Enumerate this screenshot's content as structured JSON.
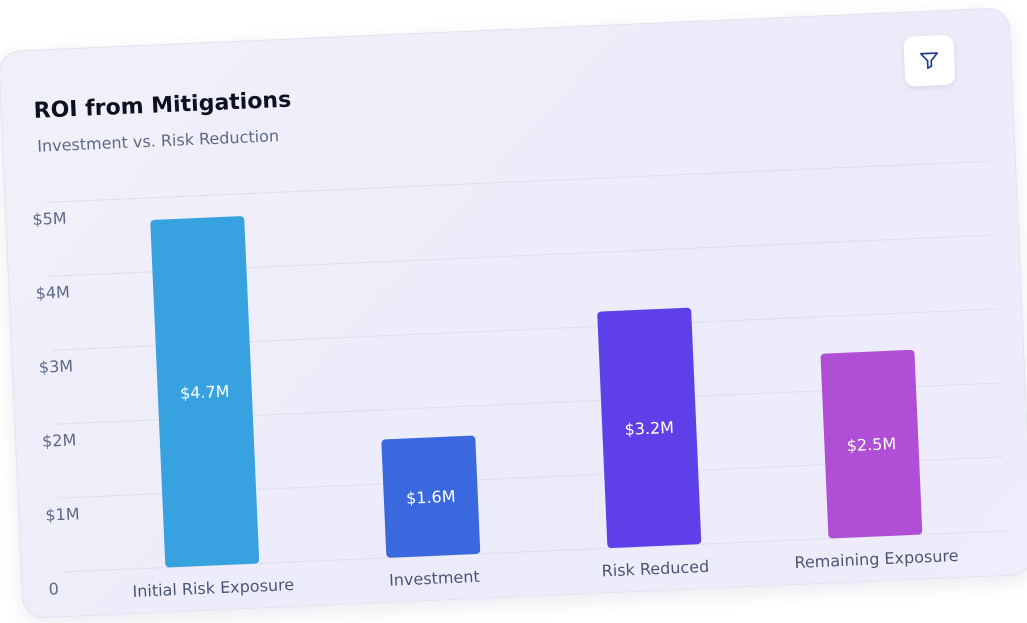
{
  "header": {
    "title": "ROI from Mitigations",
    "subtitle": "Investment vs. Risk Reduction",
    "filter_icon": "filter-icon"
  },
  "chart_data": {
    "type": "bar",
    "title": "ROI from Mitigations",
    "subtitle": "Investment vs. Risk Reduction",
    "categories": [
      "Initial Risk Exposure",
      "Investment",
      "Risk Reduced",
      "Remaining Exposure"
    ],
    "values": [
      4.7,
      1.6,
      3.2,
      2.5
    ],
    "data_labels": [
      "$4.7M",
      "$1.6M",
      "$3.2M",
      "$2.5M"
    ],
    "colors": [
      "#38a2e0",
      "#3a68de",
      "#5f40e8",
      "#b04fd6"
    ],
    "yticks": [
      "0",
      "$1M",
      "$2M",
      "$3M",
      "$4M",
      "$5M"
    ],
    "ylim": [
      0,
      5
    ],
    "unit": "$M",
    "grid": true,
    "legend": "none"
  }
}
